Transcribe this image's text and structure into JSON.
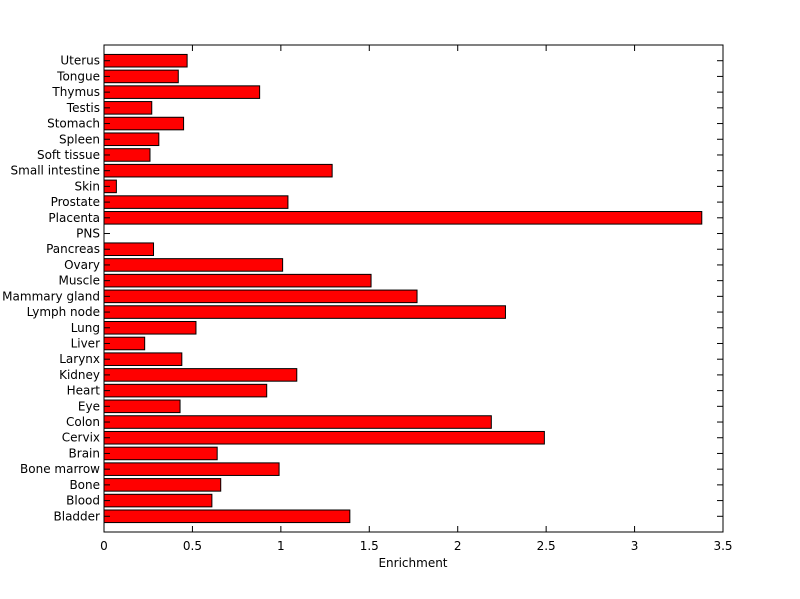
{
  "chart_data": {
    "type": "bar",
    "orientation": "horizontal",
    "categories": [
      "Bladder",
      "Blood",
      "Bone",
      "Bone marrow",
      "Brain",
      "Cervix",
      "Colon",
      "Eye",
      "Heart",
      "Kidney",
      "Larynx",
      "Liver",
      "Lung",
      "Lymph node",
      "Mammary gland",
      "Muscle",
      "Ovary",
      "Pancreas",
      "PNS",
      "Placenta",
      "Prostate",
      "Skin",
      "Small intestine",
      "Soft tissue",
      "Spleen",
      "Stomach",
      "Testis",
      "Thymus",
      "Tongue",
      "Uterus"
    ],
    "values": [
      1.39,
      0.61,
      0.66,
      0.99,
      0.64,
      2.49,
      2.19,
      0.43,
      0.92,
      1.09,
      0.44,
      0.23,
      0.52,
      2.27,
      1.77,
      1.51,
      1.01,
      0.28,
      0.0,
      3.38,
      1.04,
      0.07,
      1.29,
      0.26,
      0.31,
      0.45,
      0.27,
      0.88,
      0.42,
      0.47
    ],
    "title": "",
    "xlabel": "Enrichment",
    "ylabel": "",
    "xlim": [
      0,
      3.5
    ],
    "xticks": [
      "0",
      "0.5",
      "1",
      "1.5",
      "2",
      "2.5",
      "3",
      "3.5"
    ],
    "grid": false,
    "legend": "none",
    "bar_color": "#ff0000",
    "edge_color": "#000000"
  }
}
